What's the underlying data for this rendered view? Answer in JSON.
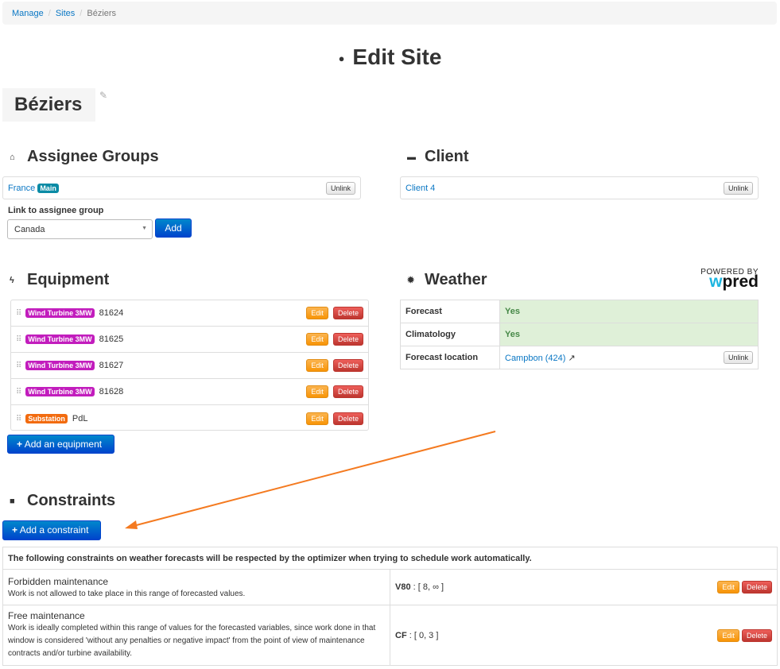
{
  "breadcrumb": {
    "items": [
      "Manage",
      "Sites"
    ],
    "current": "Béziers"
  },
  "page_title": "Edit Site",
  "site_name": "Béziers",
  "assignee": {
    "heading": "Assignee Groups",
    "group": "France",
    "badge": "Main",
    "unlink": "Unlink",
    "link_label": "Link to assignee group",
    "select_value": "Canada",
    "add": "Add"
  },
  "client": {
    "heading": "Client",
    "name": "Client 4",
    "unlink": "Unlink"
  },
  "equipment": {
    "heading": "Equipment",
    "items": [
      {
        "type": "Wind Turbine 3MW",
        "name": "81624",
        "color": "#c21dbd"
      },
      {
        "type": "Wind Turbine 3MW",
        "name": "81625",
        "color": "#c21dbd"
      },
      {
        "type": "Wind Turbine 3MW",
        "name": "81627",
        "color": "#c21dbd"
      },
      {
        "type": "Wind Turbine 3MW",
        "name": "81628",
        "color": "#c21dbd"
      },
      {
        "type": "Substation",
        "name": "PdL",
        "color": "#f26b0f"
      }
    ],
    "edit": "Edit",
    "delete": "Delete",
    "add": "Add an equipment"
  },
  "weather": {
    "heading": "Weather",
    "powered_by": "POWERED BY",
    "brand": "wpred",
    "rows": [
      {
        "label": "Forecast",
        "value": "Yes"
      },
      {
        "label": "Climatology",
        "value": "Yes"
      },
      {
        "label": "Forecast location",
        "value": "Campbon (424)"
      }
    ],
    "unlink": "Unlink"
  },
  "constraints": {
    "heading": "Constraints",
    "add": "Add a constraint",
    "intro": "The following constraints on weather forecasts will be respected by the optimizer when trying to schedule work automatically.",
    "items": [
      {
        "title": "Forbidden maintenance",
        "desc": "Work is not allowed to take place in this range of forecasted values.",
        "var": "V80",
        "range": "[ 8, ∞ ]"
      },
      {
        "title": "Free maintenance",
        "desc": "Work is ideally completed within this range of values for the forecasted variables, since work done in that window is considered 'without any penalties or negative impact' from the point of view of maintenance contracts and/or turbine availability.",
        "var": "CF",
        "range": "[ 0, 3 ]"
      }
    ],
    "edit": "Edit",
    "delete": "Delete"
  },
  "annotation_color": "#f47a20"
}
